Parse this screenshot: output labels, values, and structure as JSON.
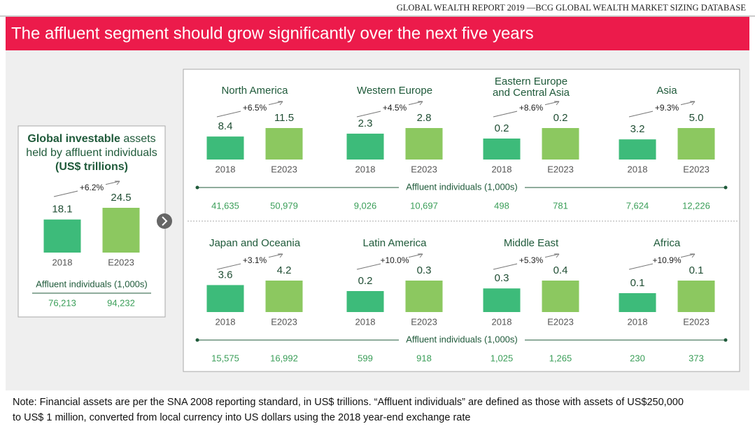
{
  "source": "GLOBAL WEALTH REPORT 2019 —BCG GLOBAL WEALTH MARKET SIZING DATABASE",
  "title": "The affluent segment should grow significantly over the next five years",
  "affluent_label": "Affluent individuals (1,000s)",
  "note": [
    "Note: Financial assets are per the SNA 2008 reporting standard, in US$ trillions. “Affluent individuals” are defined as those with assets of US$250,000",
    "to US$ 1 million, converted from local currency into US dollars using the 2018 year-end exchange rate"
  ],
  "chart_data": [
    {
      "type": "bar",
      "title": [
        "Global investable",
        "assets held by affluent individuals",
        "(US$ trillions)"
      ],
      "categories": [
        "2018",
        "E2023"
      ],
      "values": [
        18.1,
        24.5
      ],
      "annotation": "+6.2%",
      "affluent": [
        "76,213",
        "94,232"
      ],
      "colors": [
        "#3dbb7a",
        "#8cc860"
      ]
    },
    {
      "type": "bar",
      "title": "North America",
      "categories": [
        "2018",
        "E2023"
      ],
      "values": [
        8.4,
        11.5
      ],
      "annotation": "+6.5%",
      "affluent": [
        "41,635",
        "50,979"
      ],
      "colors": [
        "#3dbb7a",
        "#8cc860"
      ]
    },
    {
      "type": "bar",
      "title": "Western Europe",
      "categories": [
        "2018",
        "E2023"
      ],
      "values": [
        2.3,
        2.8
      ],
      "annotation": "+4.5%",
      "affluent": [
        "9,026",
        "10,697"
      ],
      "colors": [
        "#3dbb7a",
        "#8cc860"
      ]
    },
    {
      "type": "bar",
      "title": "Eastern Europe and Central Asia",
      "categories": [
        "2018",
        "E2023"
      ],
      "values": [
        0.16,
        0.24
      ],
      "value_labels": [
        "0.2",
        "0.2"
      ],
      "annotation": "+8.6%",
      "affluent": [
        "498",
        "781"
      ],
      "colors": [
        "#3dbb7a",
        "#8cc860"
      ]
    },
    {
      "type": "bar",
      "title": "Asia",
      "categories": [
        "2018",
        "E2023"
      ],
      "values": [
        3.2,
        5.0
      ],
      "value_labels": [
        "3.2",
        "5.0"
      ],
      "annotation": "+9.3%",
      "affluent": [
        "7,624",
        "12,226"
      ],
      "colors": [
        "#3dbb7a",
        "#8cc860"
      ]
    },
    {
      "type": "bar",
      "title": "Japan and Oceania",
      "categories": [
        "2018",
        "E2023"
      ],
      "values": [
        3.6,
        4.2
      ],
      "annotation": "+3.1%",
      "affluent": [
        "15,575",
        "16,992"
      ],
      "colors": [
        "#3dbb7a",
        "#8cc860"
      ]
    },
    {
      "type": "bar",
      "title": "Latin America",
      "categories": [
        "2018",
        "E2023"
      ],
      "values": [
        0.2,
        0.3
      ],
      "annotation": "+10.0%",
      "affluent": [
        "599",
        "918"
      ],
      "colors": [
        "#3dbb7a",
        "#8cc860"
      ]
    },
    {
      "type": "bar",
      "title": "Middle East",
      "categories": [
        "2018",
        "E2023"
      ],
      "values": [
        0.3,
        0.4
      ],
      "annotation": "+5.3%",
      "affluent": [
        "1,025",
        "1,265"
      ],
      "colors": [
        "#3dbb7a",
        "#8cc860"
      ]
    },
    {
      "type": "bar",
      "title": "Africa",
      "categories": [
        "2018",
        "E2023"
      ],
      "values": [
        0.06,
        0.1
      ],
      "value_labels": [
        "0.1",
        "0.1"
      ],
      "annotation": "+10.9%",
      "affluent": [
        "230",
        "373"
      ],
      "colors": [
        "#3dbb7a",
        "#8cc860"
      ]
    }
  ]
}
